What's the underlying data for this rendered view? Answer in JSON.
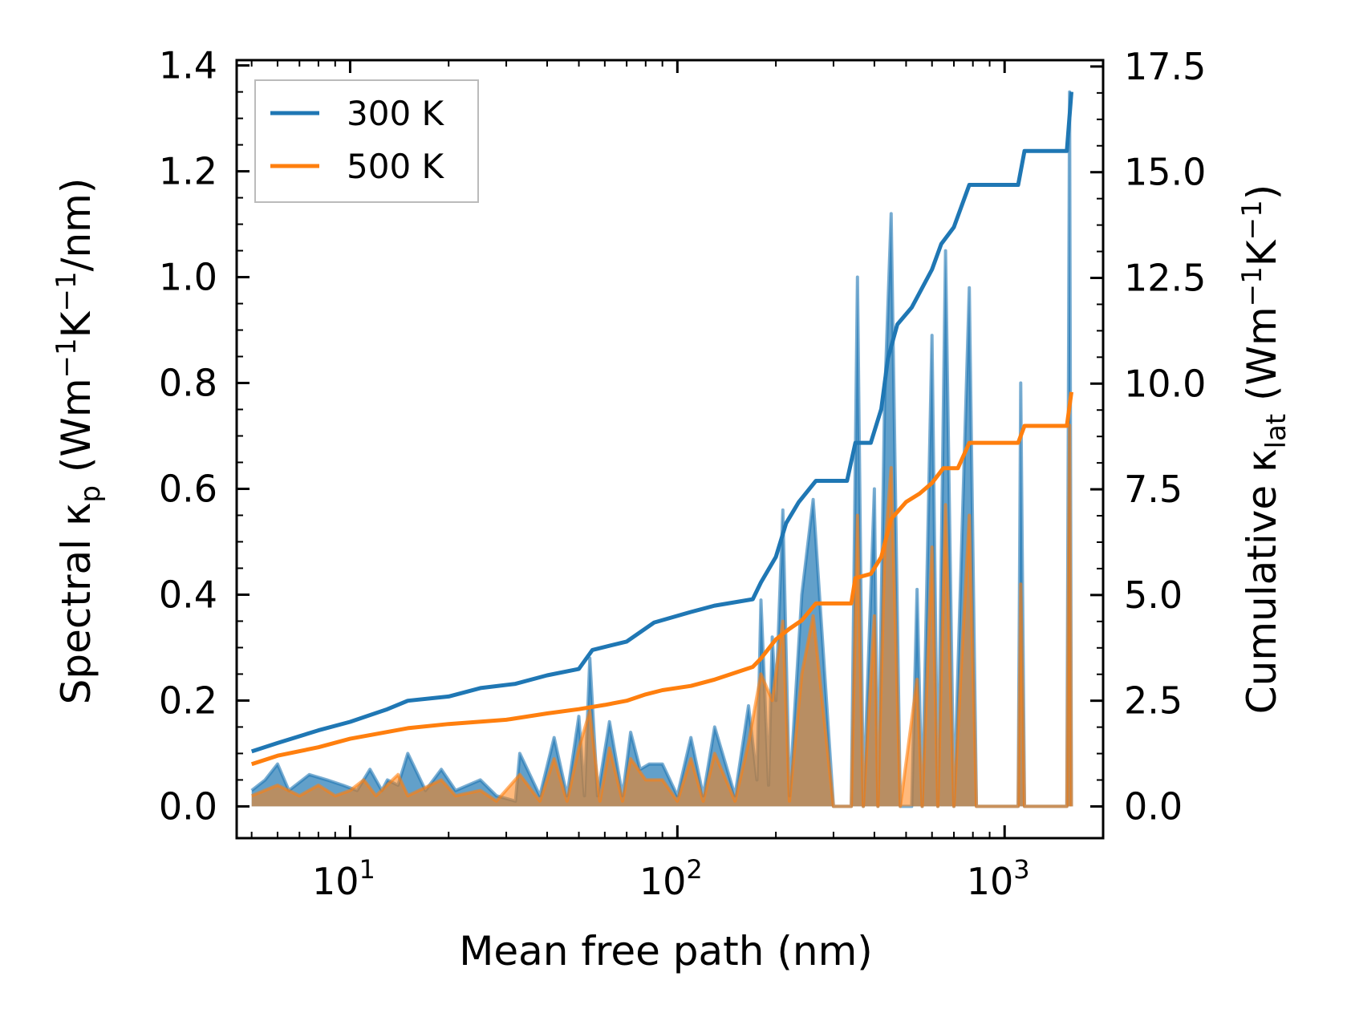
{
  "chart_data": {
    "type": "line",
    "xscale": "log",
    "xlabel": "Mean free path (nm)",
    "ylabel_left": "Spectral κ_p (Wm⁻¹K⁻¹/nm)",
    "ylabel_right": "Cumulative κ_lat (Wm⁻¹K⁻¹)",
    "xlim": [
      4.5,
      2000
    ],
    "ylim_left": [
      -0.06,
      1.41
    ],
    "ylim_right": [
      -0.75,
      17.65
    ],
    "x_ticks": [
      {
        "value": 10,
        "base": "10",
        "exp": "1"
      },
      {
        "value": 100,
        "base": "10",
        "exp": "2"
      },
      {
        "value": 1000,
        "base": "10",
        "exp": "3"
      }
    ],
    "y_ticks_left": [
      {
        "value": 0.0,
        "label": "0.0"
      },
      {
        "value": 0.2,
        "label": "0.2"
      },
      {
        "value": 0.4,
        "label": "0.4"
      },
      {
        "value": 0.6,
        "label": "0.6"
      },
      {
        "value": 0.8,
        "label": "0.8"
      },
      {
        "value": 1.0,
        "label": "1.0"
      },
      {
        "value": 1.2,
        "label": "1.2"
      },
      {
        "value": 1.4,
        "label": "1.4"
      }
    ],
    "y_ticks_right": [
      {
        "value": 0.0,
        "label": "0.0"
      },
      {
        "value": 2.5,
        "label": "2.5"
      },
      {
        "value": 5.0,
        "label": "5.0"
      },
      {
        "value": 7.5,
        "label": "7.5"
      },
      {
        "value": 10.0,
        "label": "10.0"
      },
      {
        "value": 12.5,
        "label": "12.5"
      },
      {
        "value": 15.0,
        "label": "15.0"
      },
      {
        "value": 17.5,
        "label": "17.5"
      }
    ],
    "legend": {
      "location": "top-left",
      "entries": [
        "300 K",
        "500 K"
      ]
    },
    "series": [
      {
        "name": "300 K",
        "color": "#1f77b4",
        "cumulative": [
          [
            5,
            1.3
          ],
          [
            6,
            1.5
          ],
          [
            8,
            1.8
          ],
          [
            10,
            2.0
          ],
          [
            13,
            2.3
          ],
          [
            15,
            2.5
          ],
          [
            20,
            2.6
          ],
          [
            25,
            2.8
          ],
          [
            32,
            2.9
          ],
          [
            40,
            3.1
          ],
          [
            50,
            3.25
          ],
          [
            55,
            3.7
          ],
          [
            70,
            3.9
          ],
          [
            85,
            4.35
          ],
          [
            110,
            4.6
          ],
          [
            130,
            4.75
          ],
          [
            170,
            4.9
          ],
          [
            180,
            5.3
          ],
          [
            200,
            5.9
          ],
          [
            215,
            6.7
          ],
          [
            235,
            7.2
          ],
          [
            265,
            7.7
          ],
          [
            330,
            7.7
          ],
          [
            350,
            8.6
          ],
          [
            390,
            8.6
          ],
          [
            420,
            9.4
          ],
          [
            440,
            10.6
          ],
          [
            470,
            11.4
          ],
          [
            520,
            11.8
          ],
          [
            600,
            12.7
          ],
          [
            640,
            13.3
          ],
          [
            700,
            13.7
          ],
          [
            780,
            14.7
          ],
          [
            1100,
            14.7
          ],
          [
            1150,
            15.5
          ],
          [
            1550,
            15.5
          ],
          [
            1600,
            16.9
          ]
        ],
        "spectral": [
          [
            5,
            0.03
          ],
          [
            5.5,
            0.05
          ],
          [
            6,
            0.08
          ],
          [
            6.5,
            0.03
          ],
          [
            7.5,
            0.06
          ],
          [
            8.5,
            0.05
          ],
          [
            9.5,
            0.04
          ],
          [
            10.5,
            0.03
          ],
          [
            11.5,
            0.07
          ],
          [
            12.5,
            0.03
          ],
          [
            13,
            0.05
          ],
          [
            14,
            0.04
          ],
          [
            15,
            0.1
          ],
          [
            17,
            0.03
          ],
          [
            19,
            0.07
          ],
          [
            21,
            0.03
          ],
          [
            25,
            0.05
          ],
          [
            28,
            0.02
          ],
          [
            32,
            0.01
          ],
          [
            33,
            0.1
          ],
          [
            38,
            0.02
          ],
          [
            42,
            0.13
          ],
          [
            46,
            0.02
          ],
          [
            50,
            0.17
          ],
          [
            52,
            0.02
          ],
          [
            54,
            0.28
          ],
          [
            57,
            0.02
          ],
          [
            62,
            0.16
          ],
          [
            68,
            0.02
          ],
          [
            72,
            0.14
          ],
          [
            77,
            0.07
          ],
          [
            82,
            0.08
          ],
          [
            90,
            0.08
          ],
          [
            100,
            0.02
          ],
          [
            110,
            0.13
          ],
          [
            120,
            0.02
          ],
          [
            130,
            0.15
          ],
          [
            150,
            0.02
          ],
          [
            165,
            0.19
          ],
          [
            175,
            0.05
          ],
          [
            180,
            0.39
          ],
          [
            190,
            0.04
          ],
          [
            195,
            0.32
          ],
          [
            200,
            0.2
          ],
          [
            210,
            0.56
          ],
          [
            220,
            0.02
          ],
          [
            240,
            0.4
          ],
          [
            260,
            0.58
          ],
          [
            300,
            0.0
          ],
          [
            340,
            0.0
          ],
          [
            355,
            1.0
          ],
          [
            370,
            0.0
          ],
          [
            400,
            0.6
          ],
          [
            410,
            0.0
          ],
          [
            430,
            0.77
          ],
          [
            450,
            1.12
          ],
          [
            480,
            0.0
          ],
          [
            520,
            0.0
          ],
          [
            540,
            0.41
          ],
          [
            560,
            0.0
          ],
          [
            600,
            0.89
          ],
          [
            625,
            0.0
          ],
          [
            660,
            1.05
          ],
          [
            700,
            0.0
          ],
          [
            780,
            0.98
          ],
          [
            820,
            0.0
          ],
          [
            1100,
            0.0
          ],
          [
            1120,
            0.8
          ],
          [
            1150,
            0.0
          ],
          [
            1550,
            0.0
          ],
          [
            1580,
            1.35
          ],
          [
            1600,
            0.0
          ]
        ]
      },
      {
        "name": "500 K",
        "color": "#ff7f0e",
        "cumulative": [
          [
            5,
            1.0
          ],
          [
            6,
            1.2
          ],
          [
            8,
            1.4
          ],
          [
            10,
            1.6
          ],
          [
            15,
            1.85
          ],
          [
            20,
            1.95
          ],
          [
            30,
            2.05
          ],
          [
            40,
            2.2
          ],
          [
            50,
            2.3
          ],
          [
            60,
            2.4
          ],
          [
            70,
            2.5
          ],
          [
            80,
            2.65
          ],
          [
            90,
            2.75
          ],
          [
            110,
            2.85
          ],
          [
            130,
            3.0
          ],
          [
            170,
            3.3
          ],
          [
            180,
            3.5
          ],
          [
            200,
            3.95
          ],
          [
            220,
            4.2
          ],
          [
            240,
            4.4
          ],
          [
            265,
            4.8
          ],
          [
            340,
            4.8
          ],
          [
            350,
            5.4
          ],
          [
            390,
            5.5
          ],
          [
            420,
            5.9
          ],
          [
            450,
            6.8
          ],
          [
            500,
            7.2
          ],
          [
            550,
            7.4
          ],
          [
            600,
            7.65
          ],
          [
            650,
            8.0
          ],
          [
            720,
            8.0
          ],
          [
            780,
            8.6
          ],
          [
            1100,
            8.6
          ],
          [
            1150,
            9.0
          ],
          [
            1550,
            9.0
          ],
          [
            1600,
            9.8
          ]
        ],
        "spectral": [
          [
            5,
            0.02
          ],
          [
            6,
            0.04
          ],
          [
            7,
            0.02
          ],
          [
            8,
            0.04
          ],
          [
            9,
            0.02
          ],
          [
            10,
            0.03
          ],
          [
            11,
            0.05
          ],
          [
            12,
            0.02
          ],
          [
            14,
            0.06
          ],
          [
            15,
            0.02
          ],
          [
            19,
            0.05
          ],
          [
            21,
            0.02
          ],
          [
            25,
            0.03
          ],
          [
            28,
            0.01
          ],
          [
            33,
            0.06
          ],
          [
            38,
            0.01
          ],
          [
            42,
            0.09
          ],
          [
            46,
            0.01
          ],
          [
            50,
            0.11
          ],
          [
            54,
            0.18
          ],
          [
            58,
            0.01
          ],
          [
            62,
            0.11
          ],
          [
            68,
            0.01
          ],
          [
            72,
            0.09
          ],
          [
            80,
            0.05
          ],
          [
            90,
            0.05
          ],
          [
            100,
            0.01
          ],
          [
            110,
            0.09
          ],
          [
            120,
            0.01
          ],
          [
            130,
            0.1
          ],
          [
            150,
            0.01
          ],
          [
            165,
            0.12
          ],
          [
            180,
            0.25
          ],
          [
            195,
            0.2
          ],
          [
            210,
            0.35
          ],
          [
            220,
            0.01
          ],
          [
            240,
            0.25
          ],
          [
            260,
            0.36
          ],
          [
            300,
            0.0
          ],
          [
            340,
            0.0
          ],
          [
            355,
            0.55
          ],
          [
            370,
            0.0
          ],
          [
            400,
            0.36
          ],
          [
            410,
            0.0
          ],
          [
            430,
            0.48
          ],
          [
            450,
            0.64
          ],
          [
            480,
            0.0
          ],
          [
            540,
            0.24
          ],
          [
            560,
            0.0
          ],
          [
            600,
            0.49
          ],
          [
            625,
            0.0
          ],
          [
            660,
            0.57
          ],
          [
            700,
            0.0
          ],
          [
            780,
            0.55
          ],
          [
            820,
            0.0
          ],
          [
            1100,
            0.0
          ],
          [
            1120,
            0.42
          ],
          [
            1150,
            0.0
          ],
          [
            1550,
            0.0
          ],
          [
            1580,
            0.72
          ],
          [
            1600,
            0.0
          ]
        ]
      }
    ]
  }
}
